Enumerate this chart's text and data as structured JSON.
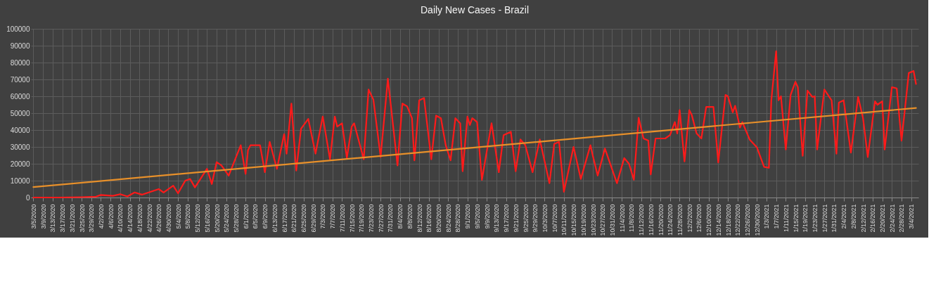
{
  "chart_data": {
    "type": "line",
    "title": "Daily New Cases - Brazil",
    "xlim": [
      "2020-03-04",
      "2021-03-07"
    ],
    "ylim": [
      0,
      100000
    ],
    "yticks": [
      0,
      10000,
      20000,
      30000,
      40000,
      50000,
      60000,
      70000,
      80000,
      90000,
      100000
    ],
    "xticks": [
      {
        "value": "2020-03-05",
        "label": "3/5/2020"
      },
      {
        "value": "2020-03-09",
        "label": "3/9/2020"
      },
      {
        "value": "2020-03-13",
        "label": "3/13/2020"
      },
      {
        "value": "2020-03-17",
        "label": "3/17/2020"
      },
      {
        "value": "2020-03-21",
        "label": "3/21/2020"
      },
      {
        "value": "2020-03-25",
        "label": "3/25/2020"
      },
      {
        "value": "2020-03-29",
        "label": "3/29/2020"
      },
      {
        "value": "2020-04-02",
        "label": "4/2/2020"
      },
      {
        "value": "2020-04-06",
        "label": "4/6/2020"
      },
      {
        "value": "2020-04-10",
        "label": "4/10/2020"
      },
      {
        "value": "2020-04-14",
        "label": "4/14/2020"
      },
      {
        "value": "2020-04-18",
        "label": "4/18/2020"
      },
      {
        "value": "2020-04-22",
        "label": "4/22/2020"
      },
      {
        "value": "2020-04-26",
        "label": "4/26/2020"
      },
      {
        "value": "2020-04-30",
        "label": "4/30/2020"
      },
      {
        "value": "2020-05-04",
        "label": "5/4/2020"
      },
      {
        "value": "2020-05-08",
        "label": "5/8/2020"
      },
      {
        "value": "2020-05-12",
        "label": "5/12/2020"
      },
      {
        "value": "2020-05-16",
        "label": "5/16/2020"
      },
      {
        "value": "2020-05-20",
        "label": "5/20/2020"
      },
      {
        "value": "2020-05-24",
        "label": "5/24/2020"
      },
      {
        "value": "2020-05-28",
        "label": "5/28/2020"
      },
      {
        "value": "2020-06-01",
        "label": "6/1/2020"
      },
      {
        "value": "2020-06-05",
        "label": "6/5/2020"
      },
      {
        "value": "2020-06-09",
        "label": "6/9/2020"
      },
      {
        "value": "2020-06-13",
        "label": "6/13/2020"
      },
      {
        "value": "2020-06-17",
        "label": "6/17/2020"
      },
      {
        "value": "2020-06-21",
        "label": "6/21/2020"
      },
      {
        "value": "2020-06-25",
        "label": "6/25/2020"
      },
      {
        "value": "2020-06-29",
        "label": "6/29/2020"
      },
      {
        "value": "2020-07-03",
        "label": "7/3/2020"
      },
      {
        "value": "2020-07-07",
        "label": "7/7/2020"
      },
      {
        "value": "2020-07-11",
        "label": "7/11/2020"
      },
      {
        "value": "2020-07-15",
        "label": "7/15/2020"
      },
      {
        "value": "2020-07-19",
        "label": "7/19/2020"
      },
      {
        "value": "2020-07-23",
        "label": "7/23/2020"
      },
      {
        "value": "2020-07-27",
        "label": "7/27/2020"
      },
      {
        "value": "2020-07-31",
        "label": "7/31/2020"
      },
      {
        "value": "2020-08-04",
        "label": "8/4/2020"
      },
      {
        "value": "2020-08-08",
        "label": "8/8/2020"
      },
      {
        "value": "2020-08-12",
        "label": "8/12/2020"
      },
      {
        "value": "2020-08-16",
        "label": "8/16/2020"
      },
      {
        "value": "2020-08-20",
        "label": "8/20/2020"
      },
      {
        "value": "2020-08-24",
        "label": "8/24/2020"
      },
      {
        "value": "2020-08-28",
        "label": "8/28/2020"
      },
      {
        "value": "2020-09-01",
        "label": "9/1/2020"
      },
      {
        "value": "2020-09-05",
        "label": "9/5/2020"
      },
      {
        "value": "2020-09-09",
        "label": "9/9/2020"
      },
      {
        "value": "2020-09-13",
        "label": "9/13/2020"
      },
      {
        "value": "2020-09-17",
        "label": "9/17/2020"
      },
      {
        "value": "2020-09-21",
        "label": "9/21/2020"
      },
      {
        "value": "2020-09-25",
        "label": "9/25/2020"
      },
      {
        "value": "2020-09-29",
        "label": "9/29/2020"
      },
      {
        "value": "2020-10-03",
        "label": "10/3/2020"
      },
      {
        "value": "2020-10-07",
        "label": "10/7/2020"
      },
      {
        "value": "2020-10-11",
        "label": "10/11/2020"
      },
      {
        "value": "2020-10-15",
        "label": "10/15/2020"
      },
      {
        "value": "2020-10-19",
        "label": "10/19/2020"
      },
      {
        "value": "2020-10-23",
        "label": "10/23/2020"
      },
      {
        "value": "2020-10-27",
        "label": "10/27/2020"
      },
      {
        "value": "2020-10-31",
        "label": "10/31/2020"
      },
      {
        "value": "2020-11-04",
        "label": "11/4/2020"
      },
      {
        "value": "2020-11-08",
        "label": "11/8/2020"
      },
      {
        "value": "2020-11-12",
        "label": "11/12/2020"
      },
      {
        "value": "2020-11-16",
        "label": "11/16/2020"
      },
      {
        "value": "2020-11-20",
        "label": "11/20/2020"
      },
      {
        "value": "2020-11-24",
        "label": "11/24/2020"
      },
      {
        "value": "2020-11-28",
        "label": "11/28/2020"
      },
      {
        "value": "2020-12-02",
        "label": "12/2/2020"
      },
      {
        "value": "2020-12-06",
        "label": "12/6/2020"
      },
      {
        "value": "2020-12-10",
        "label": "12/10/2020"
      },
      {
        "value": "2020-12-14",
        "label": "12/14/2020"
      },
      {
        "value": "2020-12-18",
        "label": "12/18/2020"
      },
      {
        "value": "2020-12-22",
        "label": "12/22/2020"
      },
      {
        "value": "2020-12-26",
        "label": "12/26/2020"
      },
      {
        "value": "2020-12-30",
        "label": "12/30/2020"
      },
      {
        "value": "2021-01-03",
        "label": "1/3/2021"
      },
      {
        "value": "2021-01-07",
        "label": "1/7/2021"
      },
      {
        "value": "2021-01-11",
        "label": "1/11/2021"
      },
      {
        "value": "2021-01-15",
        "label": "1/15/2021"
      },
      {
        "value": "2021-01-19",
        "label": "1/19/2021"
      },
      {
        "value": "2021-01-23",
        "label": "1/23/2021"
      },
      {
        "value": "2021-01-27",
        "label": "1/27/2021"
      },
      {
        "value": "2021-01-31",
        "label": "1/31/2021"
      },
      {
        "value": "2021-02-04",
        "label": "2/4/2021"
      },
      {
        "value": "2021-02-08",
        "label": "2/8/2021"
      },
      {
        "value": "2021-02-12",
        "label": "2/12/2021"
      },
      {
        "value": "2021-02-16",
        "label": "2/16/2021"
      },
      {
        "value": "2021-02-20",
        "label": "2/20/2021"
      },
      {
        "value": "2021-02-24",
        "label": "2/24/2021"
      },
      {
        "value": "2021-02-28",
        "label": "2/28/2021"
      },
      {
        "value": "2021-03-04",
        "label": "3/4/2021"
      }
    ],
    "grid": true,
    "series": [
      {
        "color": "#ff1a1a",
        "x": [
          "2020-03-05",
          "2020-03-15",
          "2020-03-25",
          "2020-03-31",
          "2020-04-02",
          "2020-04-07",
          "2020-04-10",
          "2020-04-13",
          "2020-04-16",
          "2020-04-19",
          "2020-04-26",
          "2020-04-28",
          "2020-05-02",
          "2020-05-04",
          "2020-05-07",
          "2020-05-09",
          "2020-05-11",
          "2020-05-16",
          "2020-05-18",
          "2020-05-20",
          "2020-05-22",
          "2020-05-25",
          "2020-05-30",
          "2020-06-01",
          "2020-06-02",
          "2020-06-03",
          "2020-06-07",
          "2020-06-09",
          "2020-06-11",
          "2020-06-14",
          "2020-06-17",
          "2020-06-18",
          "2020-06-20",
          "2020-06-22",
          "2020-06-24",
          "2020-06-27",
          "2020-06-30",
          "2020-07-03",
          "2020-07-06",
          "2020-07-08",
          "2020-07-09",
          "2020-07-11",
          "2020-07-13",
          "2020-07-15",
          "2020-07-16",
          "2020-07-20",
          "2020-07-22",
          "2020-07-24",
          "2020-07-27",
          "2020-07-30",
          "2020-08-03",
          "2020-08-05",
          "2020-08-07",
          "2020-08-09",
          "2020-08-10",
          "2020-08-12",
          "2020-08-14",
          "2020-08-17",
          "2020-08-19",
          "2020-08-21",
          "2020-08-23",
          "2020-08-25",
          "2020-08-27",
          "2020-08-29",
          "2020-08-30",
          "2020-09-01",
          "2020-09-02",
          "2020-09-03",
          "2020-09-05",
          "2020-09-07",
          "2020-09-11",
          "2020-09-14",
          "2020-09-16",
          "2020-09-19",
          "2020-09-21",
          "2020-09-23",
          "2020-09-25",
          "2020-09-28",
          "2020-10-01",
          "2020-10-05",
          "2020-10-07",
          "2020-10-09",
          "2020-10-11",
          "2020-10-15",
          "2020-10-18",
          "2020-10-22",
          "2020-10-23",
          "2020-10-25",
          "2020-10-28",
          "2020-11-02",
          "2020-11-05",
          "2020-11-07",
          "2020-11-09",
          "2020-11-11",
          "2020-11-13",
          "2020-11-15",
          "2020-11-16",
          "2020-11-18",
          "2020-11-22",
          "2020-11-24",
          "2020-11-26",
          "2020-11-27",
          "2020-11-28",
          "2020-11-30",
          "2020-12-02",
          "2020-12-03",
          "2020-12-05",
          "2020-12-07",
          "2020-12-09",
          "2020-12-12",
          "2020-12-14",
          "2020-12-17",
          "2020-12-18",
          "2020-12-20",
          "2020-12-21",
          "2020-12-23",
          "2020-12-24",
          "2020-12-27",
          "2020-12-30",
          "2021-01-02",
          "2021-01-04",
          "2021-01-05",
          "2021-01-07",
          "2021-01-08",
          "2021-01-09",
          "2021-01-11",
          "2021-01-13",
          "2021-01-15",
          "2021-01-16",
          "2021-01-18",
          "2021-01-20",
          "2021-01-22",
          "2021-01-23",
          "2021-01-24",
          "2021-01-27",
          "2021-01-30",
          "2021-02-01",
          "2021-02-02",
          "2021-02-04",
          "2021-02-07",
          "2021-02-10",
          "2021-02-12",
          "2021-02-14",
          "2021-02-17",
          "2021-02-18",
          "2021-02-20",
          "2021-02-21",
          "2021-02-24",
          "2021-02-26",
          "2021-02-28",
          "2021-03-03",
          "2021-03-05",
          "2021-03-06"
        ],
        "values": [
          0,
          0,
          200,
          500,
          1500,
          1000,
          2000,
          600,
          3000,
          1700,
          5000,
          3000,
          7000,
          2500,
          10000,
          11000,
          6000,
          17000,
          8000,
          21000,
          19000,
          13000,
          31000,
          14000,
          28000,
          31000,
          31000,
          15000,
          33000,
          17000,
          37600,
          26000,
          55700,
          16000,
          40800,
          46600,
          26000,
          48000,
          22700,
          48000,
          42000,
          44000,
          23400,
          42000,
          44000,
          22700,
          64000,
          58000,
          24000,
          70500,
          19000,
          55700,
          54000,
          47000,
          22000,
          57600,
          59000,
          22700,
          48600,
          47000,
          31000,
          22000,
          47000,
          44000,
          15600,
          48000,
          43000,
          47000,
          44700,
          10500,
          44000,
          15000,
          37000,
          39000,
          15600,
          34400,
          31000,
          15000,
          34400,
          8500,
          31800,
          33000,
          3400,
          30000,
          11000,
          31000,
          24700,
          13000,
          29000,
          8500,
          23400,
          20000,
          10500,
          47300,
          35000,
          33700,
          13700,
          35000,
          35000,
          37000,
          44700,
          38000,
          51800,
          21400,
          51800,
          49000,
          38000,
          35000,
          53700,
          53700,
          20800,
          60800,
          60000,
          50500,
          54400,
          41500,
          44700,
          34400,
          29800,
          18200,
          17600,
          57600,
          86700,
          57600,
          60000,
          28500,
          60800,
          68600,
          65400,
          24700,
          63400,
          59600,
          60000,
          28500,
          64000,
          57600,
          26000,
          56300,
          57600,
          26600,
          59600,
          47300,
          24000,
          57000,
          55000,
          57000,
          28500,
          65400,
          64700,
          33700,
          73800,
          75000,
          67300
        ]
      },
      {
        "color": "#e8902a",
        "x": [
          "2020-03-05",
          "2021-03-06"
        ],
        "values": [
          6200,
          53100
        ]
      }
    ]
  }
}
